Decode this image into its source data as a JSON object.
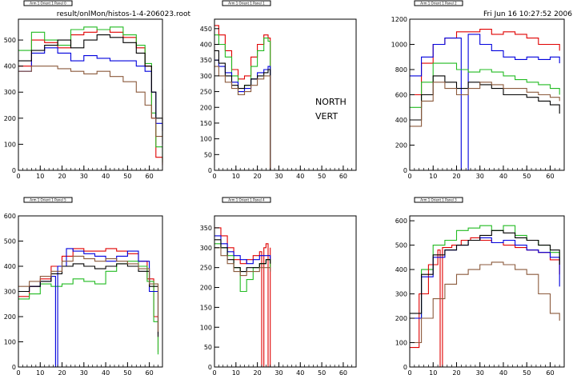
{
  "header": {
    "filename": "result/onlMon/histos-1-4-206023.root",
    "date": "Fri Jun 16 10:27:52 2006",
    "annotation_lines": [
      "NORTH",
      "VERT"
    ]
  },
  "colors": {
    "black": "#000000",
    "red": "#e00000",
    "green": "#22bb22",
    "blue": "#0000dd",
    "brown": "#8b5a3c"
  },
  "chart_data": [
    {
      "type": "line",
      "title": "Arm 1 Orient 1 Panel 0",
      "xlim": [
        0,
        66
      ],
      "ylim": [
        0,
        580
      ],
      "xticks": [
        0,
        10,
        20,
        30,
        40,
        50,
        60
      ],
      "yticks": [
        0,
        100,
        200,
        300,
        400,
        500
      ],
      "series": [
        {
          "color": "red",
          "x": [
            0,
            6,
            12,
            18,
            24,
            30,
            36,
            42,
            48,
            54,
            58,
            61,
            63,
            66
          ],
          "y": [
            400,
            500,
            490,
            470,
            520,
            530,
            540,
            530,
            510,
            470,
            400,
            200,
            50,
            20
          ]
        },
        {
          "color": "green",
          "x": [
            0,
            6,
            12,
            18,
            24,
            30,
            36,
            42,
            48,
            54,
            58,
            61,
            63,
            66
          ],
          "y": [
            460,
            530,
            500,
            480,
            540,
            550,
            540,
            550,
            520,
            480,
            410,
            220,
            90,
            30
          ]
        },
        {
          "color": "blue",
          "x": [
            0,
            6,
            12,
            18,
            24,
            30,
            36,
            42,
            48,
            54,
            58,
            61,
            63,
            66
          ],
          "y": [
            380,
            450,
            470,
            450,
            420,
            440,
            430,
            420,
            420,
            400,
            380,
            300,
            180,
            150
          ]
        },
        {
          "color": "black",
          "x": [
            0,
            6,
            12,
            18,
            24,
            30,
            36,
            42,
            48,
            54,
            58,
            61,
            63,
            66
          ],
          "y": [
            420,
            460,
            480,
            500,
            470,
            500,
            520,
            510,
            490,
            450,
            400,
            300,
            200,
            100
          ]
        },
        {
          "color": "brown",
          "x": [
            0,
            6,
            12,
            18,
            24,
            30,
            36,
            42,
            48,
            54,
            58,
            61,
            63,
            66
          ],
          "y": [
            380,
            400,
            400,
            390,
            380,
            370,
            380,
            360,
            340,
            300,
            250,
            200,
            130,
            310
          ]
        }
      ]
    },
    {
      "type": "line",
      "title": "Arm 1 Orient 1 Panel 1",
      "xlim": [
        0,
        66
      ],
      "ylim": [
        0,
        480
      ],
      "xticks": [
        0,
        10,
        20,
        30,
        40,
        50,
        60
      ],
      "yticks": [
        0,
        50,
        100,
        150,
        200,
        250,
        300,
        350,
        400,
        450
      ],
      "series": [
        {
          "color": "red",
          "x": [
            0,
            2,
            5,
            8,
            11,
            14,
            17,
            20,
            23,
            25,
            26
          ],
          "y": [
            460,
            430,
            380,
            320,
            290,
            300,
            360,
            400,
            430,
            420,
            0
          ]
        },
        {
          "color": "green",
          "x": [
            0,
            2,
            5,
            8,
            11,
            14,
            17,
            20,
            23,
            25,
            26
          ],
          "y": [
            430,
            400,
            360,
            300,
            240,
            270,
            330,
            380,
            420,
            410,
            0
          ]
        },
        {
          "color": "blue",
          "x": [
            0,
            2,
            5,
            8,
            11,
            14,
            17,
            20,
            23,
            25,
            26
          ],
          "y": [
            350,
            330,
            310,
            280,
            250,
            260,
            290,
            310,
            320,
            330,
            0
          ]
        },
        {
          "color": "black",
          "x": [
            0,
            2,
            5,
            8,
            11,
            14,
            17,
            20,
            23,
            25,
            26
          ],
          "y": [
            380,
            340,
            300,
            270,
            260,
            270,
            290,
            300,
            310,
            320,
            0
          ]
        },
        {
          "color": "brown",
          "x": [
            0,
            2,
            5,
            8,
            11,
            14,
            17,
            20,
            23,
            25,
            26
          ],
          "y": [
            330,
            300,
            280,
            260,
            240,
            250,
            270,
            290,
            300,
            300,
            0
          ]
        }
      ]
    },
    {
      "type": "line",
      "title": "Arm 1 Orient 1 Panel 2",
      "xlim": [
        0,
        66
      ],
      "ylim": [
        0,
        1200
      ],
      "xticks": [
        0,
        10,
        20,
        30,
        40,
        50,
        60
      ],
      "yticks": [
        0,
        200,
        400,
        600,
        800,
        1000,
        1200
      ],
      "series": [
        {
          "color": "red",
          "x": [
            0,
            5,
            10,
            15,
            20,
            25,
            30,
            35,
            40,
            45,
            50,
            55,
            60,
            64
          ],
          "y": [
            600,
            850,
            1000,
            1050,
            1100,
            1100,
            1120,
            1080,
            1100,
            1080,
            1050,
            1000,
            1000,
            950
          ]
        },
        {
          "color": "blue",
          "x": [
            0,
            5,
            10,
            15,
            20,
            22,
            25,
            30,
            35,
            40,
            45,
            50,
            55,
            60,
            64
          ],
          "y": [
            750,
            900,
            1000,
            1050,
            1050,
            0,
            1080,
            1000,
            950,
            900,
            880,
            900,
            880,
            900,
            850
          ]
        },
        {
          "color": "green",
          "x": [
            0,
            5,
            10,
            15,
            20,
            25,
            30,
            35,
            40,
            45,
            50,
            55,
            60,
            64
          ],
          "y": [
            500,
            700,
            850,
            850,
            800,
            780,
            800,
            780,
            750,
            720,
            700,
            680,
            650,
            600
          ]
        },
        {
          "color": "black",
          "x": [
            0,
            5,
            10,
            15,
            20,
            25,
            30,
            35,
            40,
            45,
            50,
            55,
            60,
            64
          ],
          "y": [
            400,
            600,
            750,
            700,
            650,
            700,
            680,
            650,
            600,
            600,
            580,
            550,
            520,
            450
          ]
        },
        {
          "color": "brown",
          "x": [
            0,
            5,
            10,
            15,
            20,
            25,
            30,
            35,
            40,
            45,
            50,
            55,
            60,
            64
          ],
          "y": [
            350,
            550,
            700,
            650,
            600,
            650,
            700,
            680,
            650,
            650,
            620,
            600,
            580,
            550
          ]
        }
      ]
    },
    {
      "type": "line",
      "title": "Arm 1 Orient 1 Panel 5",
      "xlim": [
        0,
        66
      ],
      "ylim": [
        0,
        600
      ],
      "xticks": [
        0,
        10,
        20,
        30,
        40,
        50,
        60
      ],
      "yticks": [
        0,
        100,
        200,
        300,
        400,
        500,
        600
      ],
      "series": [
        {
          "color": "red",
          "x": [
            0,
            5,
            10,
            15,
            20,
            25,
            30,
            35,
            40,
            45,
            50,
            55,
            59,
            62,
            64
          ],
          "y": [
            280,
            320,
            350,
            400,
            440,
            470,
            460,
            460,
            470,
            460,
            450,
            420,
            350,
            200,
            60
          ]
        },
        {
          "color": "green",
          "x": [
            0,
            5,
            10,
            15,
            20,
            25,
            30,
            35,
            40,
            45,
            50,
            55,
            59,
            62,
            64
          ],
          "y": [
            270,
            290,
            330,
            320,
            330,
            350,
            340,
            330,
            380,
            410,
            420,
            400,
            340,
            180,
            50
          ]
        },
        {
          "color": "blue",
          "x": [
            0,
            5,
            10,
            15,
            17,
            18,
            22,
            25,
            30,
            35,
            40,
            45,
            50,
            55,
            60,
            64
          ],
          "y": [
            300,
            320,
            340,
            360,
            0,
            400,
            470,
            460,
            450,
            440,
            420,
            440,
            460,
            420,
            300,
            130
          ]
        },
        {
          "color": "black",
          "x": [
            0,
            5,
            10,
            15,
            20,
            25,
            30,
            35,
            40,
            45,
            50,
            55,
            60,
            64
          ],
          "y": [
            300,
            320,
            340,
            370,
            400,
            410,
            400,
            390,
            400,
            410,
            400,
            380,
            320,
            120
          ]
        },
        {
          "color": "brown",
          "x": [
            0,
            5,
            10,
            15,
            20,
            25,
            30,
            35,
            40,
            45,
            50,
            55,
            60,
            64
          ],
          "y": [
            320,
            340,
            360,
            380,
            420,
            440,
            430,
            420,
            430,
            420,
            410,
            390,
            330,
            140
          ]
        }
      ]
    },
    {
      "type": "line",
      "title": "Arm 1 Orient 1 Panel 4",
      "xlim": [
        0,
        66
      ],
      "ylim": [
        0,
        380
      ],
      "xticks": [
        0,
        10,
        20,
        30,
        40,
        50,
        60
      ],
      "yticks": [
        0,
        50,
        100,
        150,
        200,
        250,
        300,
        350
      ],
      "series": [
        {
          "color": "red",
          "x": [
            0,
            3,
            6,
            9,
            12,
            15,
            18,
            21,
            22,
            23,
            24,
            25,
            26
          ],
          "y": [
            350,
            330,
            300,
            270,
            260,
            270,
            280,
            290,
            0,
            300,
            310,
            0,
            300
          ]
        },
        {
          "color": "green",
          "x": [
            0,
            3,
            6,
            9,
            12,
            15,
            18,
            21,
            24,
            26
          ],
          "y": [
            310,
            300,
            280,
            250,
            190,
            220,
            250,
            260,
            270,
            250
          ]
        },
        {
          "color": "blue",
          "x": [
            0,
            3,
            6,
            9,
            12,
            15,
            18,
            21,
            24,
            26
          ],
          "y": [
            330,
            310,
            290,
            280,
            270,
            260,
            270,
            280,
            280,
            270
          ]
        },
        {
          "color": "black",
          "x": [
            0,
            3,
            6,
            9,
            12,
            15,
            18,
            21,
            24,
            26
          ],
          "y": [
            320,
            300,
            270,
            250,
            240,
            250,
            250,
            260,
            270,
            260
          ]
        },
        {
          "color": "brown",
          "x": [
            0,
            3,
            6,
            9,
            12,
            15,
            18,
            21,
            24,
            26
          ],
          "y": [
            300,
            280,
            260,
            240,
            230,
            240,
            240,
            250,
            250,
            240
          ]
        }
      ]
    },
    {
      "type": "line",
      "title": "Arm 1 Orient 1 Panel 3",
      "xlim": [
        0,
        66
      ],
      "ylim": [
        0,
        620
      ],
      "xticks": [
        0,
        10,
        20,
        30,
        40,
        50,
        60
      ],
      "yticks": [
        0,
        100,
        200,
        300,
        400,
        500,
        600
      ],
      "series": [
        {
          "color": "green",
          "x": [
            0,
            5,
            10,
            15,
            20,
            25,
            30,
            35,
            40,
            45,
            50,
            55,
            60,
            64
          ],
          "y": [
            200,
            400,
            500,
            520,
            560,
            570,
            580,
            560,
            580,
            540,
            520,
            500,
            470,
            420
          ]
        },
        {
          "color": "red",
          "x": [
            0,
            4,
            8,
            12,
            13,
            14,
            18,
            22,
            26,
            30,
            35,
            40,
            45,
            50,
            55,
            60,
            64
          ],
          "y": [
            80,
            300,
            420,
            480,
            0,
            490,
            500,
            520,
            530,
            520,
            510,
            500,
            490,
            480,
            470,
            440,
            380
          ]
        },
        {
          "color": "blue",
          "x": [
            0,
            5,
            10,
            15,
            20,
            25,
            30,
            35,
            40,
            45,
            50,
            55,
            60,
            64
          ],
          "y": [
            200,
            370,
            450,
            480,
            500,
            520,
            530,
            510,
            520,
            500,
            480,
            470,
            450,
            330
          ]
        },
        {
          "color": "black",
          "x": [
            0,
            5,
            10,
            15,
            20,
            25,
            30,
            35,
            40,
            45,
            50,
            55,
            60,
            64
          ],
          "y": [
            220,
            380,
            460,
            480,
            500,
            520,
            540,
            560,
            550,
            530,
            520,
            500,
            480,
            420
          ]
        },
        {
          "color": "brown",
          "x": [
            0,
            5,
            10,
            15,
            20,
            25,
            30,
            35,
            40,
            45,
            50,
            55,
            60,
            64
          ],
          "y": [
            100,
            200,
            280,
            340,
            380,
            400,
            420,
            430,
            420,
            400,
            380,
            300,
            220,
            190
          ]
        }
      ]
    }
  ]
}
